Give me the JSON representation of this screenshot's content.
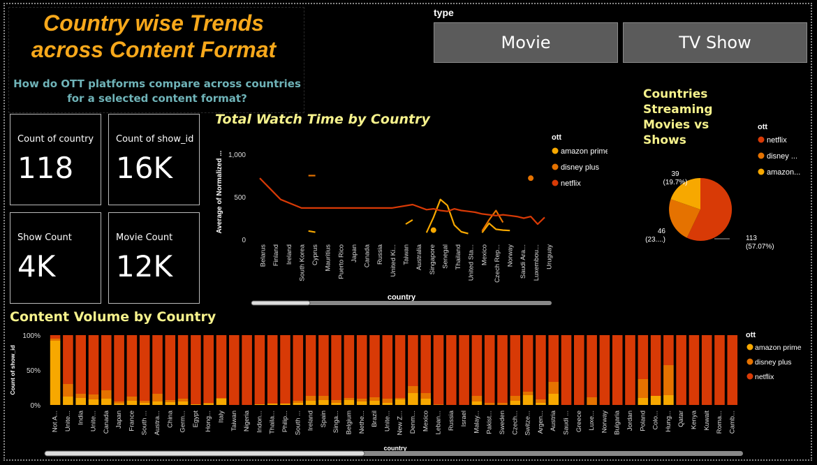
{
  "header": {
    "title_line1": "Country wise Trends",
    "title_line2": "across Content Format",
    "subtitle": "How do OTT platforms compare across countries for a selected content format?"
  },
  "slicer": {
    "label": "type",
    "options": [
      "Movie",
      "TV Show"
    ]
  },
  "cards": [
    {
      "label": "Count of country",
      "value": "118"
    },
    {
      "label": "Count of show_id",
      "value": "16K"
    },
    {
      "label": "Show Count",
      "value": "4K"
    },
    {
      "label": "Movie Count",
      "value": "12K"
    }
  ],
  "colors": {
    "amazon prime": "#f7a800",
    "disney plus": "#e57200",
    "netflix": "#d83a06",
    "accent_title": "#f7a81b",
    "chart_title": "#f6f28c"
  },
  "chart_data": [
    {
      "type": "line",
      "title": "Total Watch Time by Country",
      "xlabel": "country",
      "ylabel": "Average of Normalized ...",
      "yticks": [
        "0",
        "500",
        "1,000"
      ],
      "ylim": [
        0,
        1100
      ],
      "legend_title": "ott",
      "legend_position": "right",
      "categories": [
        "Belarus",
        "Finland",
        "Ireland",
        "South Korea",
        "Cyprus",
        "Mauritius",
        "Puerto Rico",
        "Japan",
        "Canada",
        "Russia",
        "United Kin...",
        "Taiwan",
        "Australia",
        "Singapore",
        "Senegal",
        "Thailand",
        "United Sta...",
        "Mexico",
        "Czech Rep...",
        "Norway",
        "Saudi Ara...",
        "Luxembou...",
        "Uruguay"
      ],
      "tick_labels": [
        "Belarus",
        "Finland",
        "Ireland",
        "South Korea",
        "Cyprus",
        "Mauritius",
        "Puerto Rico",
        "Japan",
        "Canada",
        "Russia",
        "United Ki...",
        "Taiwan",
        "Australia",
        "Singapore",
        "Senegal",
        "Thailand",
        "United Sta...",
        "Mexico",
        "Czech Rep...",
        "Norway",
        "Saudi Ara...",
        "Luxembou...",
        "Uruguay"
      ],
      "x_count": 41,
      "series": [
        {
          "name": "amazon prime",
          "color": "#f7a800",
          "segments": [
            [
              [
                7,
                100
              ],
              [
                8,
                85
              ]
            ],
            [
              [
                21,
                180
              ],
              [
                22,
                230
              ]
            ],
            [
              [
                24,
                80
              ],
              [
                25,
                260
              ],
              [
                26,
                470
              ],
              [
                27,
                400
              ],
              [
                28,
                170
              ],
              [
                29,
                90
              ],
              [
                30,
                70
              ]
            ],
            [
              [
                32,
                80
              ],
              [
                33,
                190
              ],
              [
                34,
                120
              ],
              [
                35,
                110
              ],
              [
                36,
                105
              ]
            ]
          ],
          "points": [
            [
              25,
              110
            ]
          ]
        },
        {
          "name": "disney plus",
          "color": "#e57200",
          "segments": [
            [
              [
                7,
                750
              ],
              [
                8,
                750
              ]
            ],
            [
              [
                32,
                100
              ],
              [
                33,
                230
              ],
              [
                34,
                340
              ],
              [
                35,
                200
              ]
            ]
          ],
          "points": [
            [
              39,
              720
            ]
          ]
        },
        {
          "name": "netflix",
          "color": "#d83a06",
          "segments": [
            [
              [
                0,
                720
              ],
              [
                3,
                470
              ],
              [
                6,
                370
              ],
              [
                10,
                370
              ],
              [
                13,
                370
              ],
              [
                16,
                370
              ],
              [
                19,
                370
              ],
              [
                22,
                410
              ],
              [
                24,
                350
              ],
              [
                25,
                360
              ],
              [
                26,
                340
              ],
              [
                27,
                330
              ],
              [
                28,
                360
              ],
              [
                29,
                340
              ],
              [
                30,
                330
              ],
              [
                31,
                320
              ],
              [
                32,
                300
              ],
              [
                33,
                290
              ],
              [
                34,
                280
              ],
              [
                35,
                290
              ],
              [
                36,
                280
              ],
              [
                37,
                270
              ],
              [
                38,
                250
              ],
              [
                39,
                270
              ],
              [
                40,
                180
              ],
              [
                41,
                260
              ]
            ]
          ],
          "points": []
        }
      ]
    },
    {
      "type": "pie",
      "title": "Countries Streaming Movies vs Shows",
      "legend_title": "ott",
      "legend_position": "right",
      "legend_labels": [
        "netflix",
        "disney ...",
        "amazon..."
      ],
      "slices": [
        {
          "name": "netflix",
          "value": 113,
          "label_value": "113",
          "label_pct": "(57.07%)",
          "color": "#d83a06"
        },
        {
          "name": "disney plus",
          "value": 46,
          "label_value": "46",
          "label_pct": "(23....)",
          "color": "#e57200"
        },
        {
          "name": "amazon prime",
          "value": 39,
          "label_value": "39",
          "label_pct": "(19.7%)",
          "color": "#f7a800"
        }
      ]
    },
    {
      "type": "bar",
      "stacked": "100%",
      "title": "Content Volume by Country",
      "xlabel": "country",
      "ylabel": "Count of show_id",
      "yticks": [
        "0%",
        "50%",
        "100%"
      ],
      "legend_title": "ott",
      "legend_position": "right",
      "categories": [
        "Not A...",
        "Unite...",
        "India",
        "Unite...",
        "Canada",
        "Japan",
        "France",
        "South ...",
        "Austra...",
        "China",
        "Germ...",
        "Egypt",
        "Hong...",
        "Italy",
        "Taiwan",
        "Nigeria",
        "Indon...",
        "Thaila...",
        "Philip...",
        "South ...",
        "Ireland",
        "Spain",
        "Singa...",
        "Belgium",
        "Nethe...",
        "Brazil",
        "Unite...",
        "New Z...",
        "Denm...",
        "Mexico",
        "Leban...",
        "Russia",
        "Israel",
        "Malay...",
        "Pakist...",
        "Sweden",
        "Czech...",
        "Switze...",
        "Argen...",
        "Austria",
        "Saudi ...",
        "Greece",
        "Luxe...",
        "Norway",
        "Bulgaria",
        "Jordan",
        "Poland",
        "Colo...",
        "Hung...",
        "Qatar",
        "Kenya",
        "Kuwait",
        "Roma...",
        "Camb..."
      ],
      "series": [
        {
          "name": "amazon prime",
          "color": "#f7a800",
          "values": [
            92,
            12,
            10,
            8,
            9,
            2,
            6,
            3,
            5,
            4,
            5,
            1,
            2,
            9,
            0,
            0,
            1,
            2,
            2,
            3,
            6,
            7,
            3,
            7,
            5,
            6,
            3,
            8,
            17,
            9,
            0,
            0,
            0,
            5,
            0,
            0,
            6,
            14,
            3,
            16,
            0,
            0,
            0,
            0,
            0,
            0,
            10,
            13,
            14,
            0,
            0,
            0,
            0,
            0
          ]
        },
        {
          "name": "disney plus",
          "color": "#e57200",
          "values": [
            3,
            18,
            6,
            7,
            12,
            3,
            6,
            3,
            11,
            3,
            4,
            0,
            1,
            1,
            0,
            0,
            0,
            0,
            0,
            3,
            7,
            6,
            4,
            3,
            4,
            5,
            6,
            2,
            10,
            8,
            1,
            0,
            0,
            8,
            3,
            3,
            7,
            5,
            5,
            17,
            0,
            0,
            11,
            0,
            0,
            0,
            27,
            0,
            43,
            0,
            0,
            0,
            0,
            0
          ]
        },
        {
          "name": "netflix",
          "color": "#d83a06",
          "values": [
            5,
            70,
            84,
            85,
            79,
            95,
            88,
            94,
            84,
            93,
            91,
            99,
            97,
            90,
            100,
            100,
            99,
            98,
            98,
            94,
            87,
            87,
            93,
            90,
            91,
            89,
            91,
            90,
            73,
            83,
            99,
            100,
            100,
            87,
            97,
            97,
            87,
            81,
            92,
            67,
            100,
            100,
            89,
            100,
            100,
            100,
            63,
            87,
            43,
            100,
            100,
            100,
            100,
            100
          ]
        }
      ]
    }
  ]
}
